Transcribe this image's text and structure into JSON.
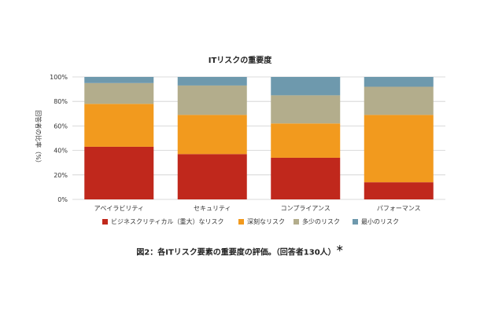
{
  "chart_data": {
    "type": "bar",
    "stacked": true,
    "title": "ITリスクの重要度",
    "ylabel": "回答者の比率（%）",
    "ylim": [
      0,
      100
    ],
    "yticks": [
      "0%",
      "20%",
      "40%",
      "60%",
      "80%",
      "100%"
    ],
    "categories": [
      "アベイラビリティ",
      "セキュリティ",
      "コンプライアンス",
      "パフォーマンス"
    ],
    "legend_position": "bottom",
    "series": [
      {
        "name": "ビジネスクリティカル（重大）なリスク",
        "color": "#c0281c",
        "values": [
          43,
          37,
          34,
          14
        ]
      },
      {
        "name": "深刻なリスク",
        "color": "#f29a1e",
        "values": [
          35,
          32,
          28,
          55
        ]
      },
      {
        "name": "多少のリスク",
        "color": "#b3ad8c",
        "values": [
          17,
          24,
          23,
          23
        ]
      },
      {
        "name": "最小のリスク",
        "color": "#6e99ad",
        "values": [
          5,
          7,
          15,
          8
        ]
      }
    ]
  },
  "caption": {
    "text": "図2：各ITリスク要素の重要度の評価。（回答者130人）",
    "mark": "＊"
  }
}
